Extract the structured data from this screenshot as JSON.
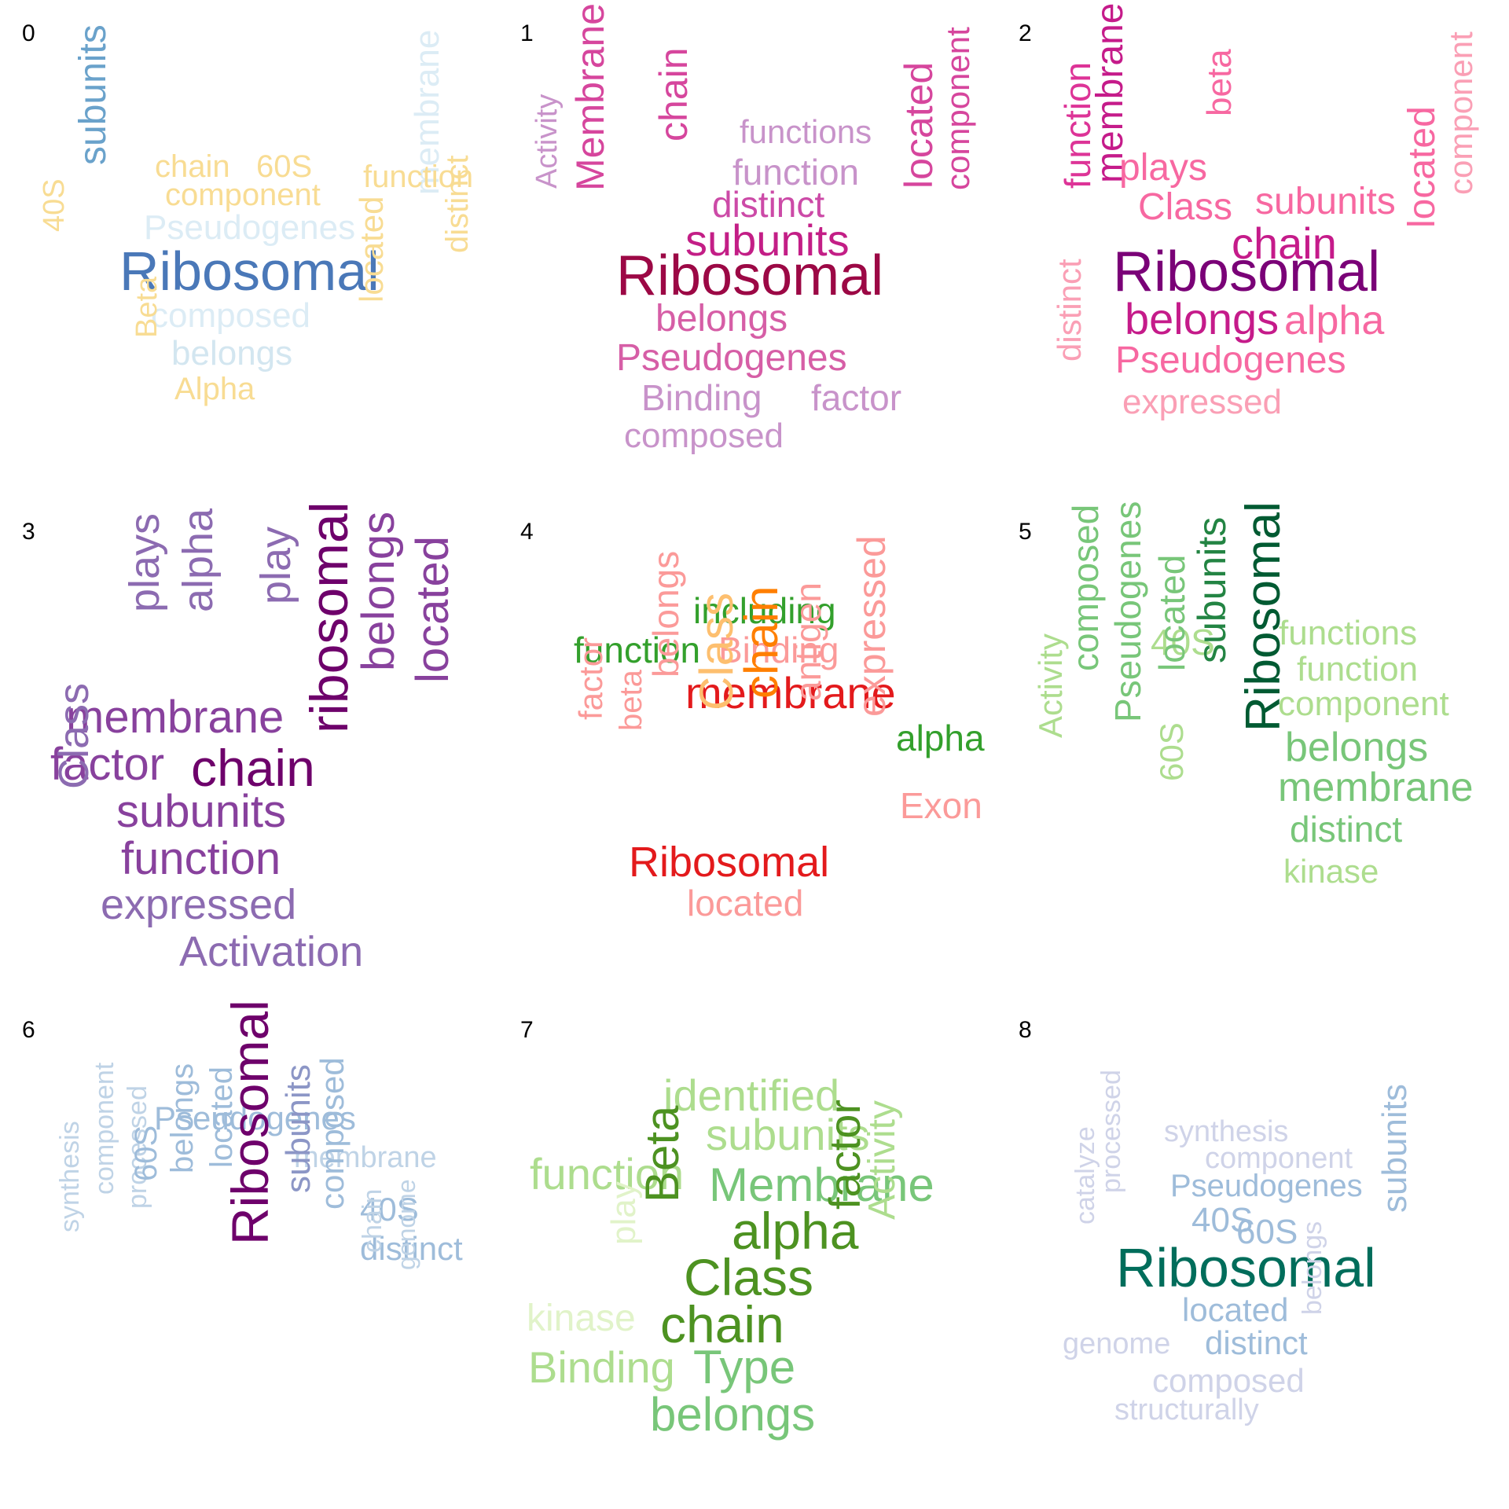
{
  "panels": [
    {
      "label": "0",
      "words": [
        {
          "text": "Ribosomal",
          "color": "#4a78b8",
          "vertical": false
        },
        {
          "text": "subunits",
          "color": "#6aa2cb",
          "vertical": true
        },
        {
          "text": "Pseudogenes",
          "color": "#dcecf5",
          "vertical": false
        },
        {
          "text": "composed",
          "color": "#dcecf5",
          "vertical": false
        },
        {
          "text": "belongs",
          "color": "#d3e6f0",
          "vertical": false
        },
        {
          "text": "membrane",
          "color": "#dcecf5",
          "vertical": true
        },
        {
          "text": "chain",
          "color": "#f8dc93",
          "vertical": false
        },
        {
          "text": "60S",
          "color": "#f8dc93",
          "vertical": false
        },
        {
          "text": "component",
          "color": "#f8dc93",
          "vertical": false
        },
        {
          "text": "function",
          "color": "#f8dc93",
          "vertical": false
        },
        {
          "text": "40S",
          "color": "#f8dc93",
          "vertical": true
        },
        {
          "text": "Beta",
          "color": "#f8dc93",
          "vertical": true
        },
        {
          "text": "Alpha",
          "color": "#f8dc93",
          "vertical": false
        },
        {
          "text": "located",
          "color": "#f8dc93",
          "vertical": true
        },
        {
          "text": "distinct",
          "color": "#f8dc93",
          "vertical": true
        }
      ]
    },
    {
      "label": "1",
      "words": [
        {
          "text": "Ribosomal",
          "color": "#9c0845",
          "vertical": false
        },
        {
          "text": "subunits",
          "color": "#c31e86",
          "vertical": false
        },
        {
          "text": "distinct",
          "color": "#cc4aa7",
          "vertical": false
        },
        {
          "text": "function",
          "color": "#c893ca",
          "vertical": false
        },
        {
          "text": "functions",
          "color": "#c893ca",
          "vertical": false
        },
        {
          "text": "chain",
          "color": "#d6469d",
          "vertical": true
        },
        {
          "text": "Membrane",
          "color": "#d6469d",
          "vertical": true
        },
        {
          "text": "Activity",
          "color": "#c893ca",
          "vertical": true
        },
        {
          "text": "belongs",
          "color": "#d65ea6",
          "vertical": false
        },
        {
          "text": "Pseudogenes",
          "color": "#d65ea6",
          "vertical": false
        },
        {
          "text": "Binding",
          "color": "#c893ca",
          "vertical": false
        },
        {
          "text": "factor",
          "color": "#c893ca",
          "vertical": false
        },
        {
          "text": "composed",
          "color": "#c893ca",
          "vertical": false
        },
        {
          "text": "located",
          "color": "#d6469d",
          "vertical": true
        },
        {
          "text": "component",
          "color": "#d6469d",
          "vertical": true
        }
      ]
    },
    {
      "label": "2",
      "words": [
        {
          "text": "Ribosomal",
          "color": "#7a0177",
          "vertical": false
        },
        {
          "text": "chain",
          "color": "#c51b8a",
          "vertical": false
        },
        {
          "text": "belongs",
          "color": "#c51b8a",
          "vertical": false
        },
        {
          "text": "membrane",
          "color": "#c51b8a",
          "vertical": true
        },
        {
          "text": "function",
          "color": "#dd3497",
          "vertical": true
        },
        {
          "text": "plays",
          "color": "#f768a1",
          "vertical": false
        },
        {
          "text": "beta",
          "color": "#f768a1",
          "vertical": true
        },
        {
          "text": "Class",
          "color": "#f768a1",
          "vertical": false
        },
        {
          "text": "subunits",
          "color": "#f768a1",
          "vertical": false
        },
        {
          "text": "alpha",
          "color": "#f768a1",
          "vertical": false
        },
        {
          "text": "Pseudogenes",
          "color": "#f768a1",
          "vertical": false
        },
        {
          "text": "expressed",
          "color": "#fa9fb5",
          "vertical": false
        },
        {
          "text": "distinct",
          "color": "#fa9fb5",
          "vertical": true
        },
        {
          "text": "located",
          "color": "#f768a1",
          "vertical": true
        },
        {
          "text": "component",
          "color": "#fa9fb5",
          "vertical": true
        }
      ]
    },
    {
      "label": "3",
      "words": [
        {
          "text": "plays",
          "color": "#8c6bb1",
          "vertical": true
        },
        {
          "text": "alpha",
          "color": "#8c6bb1",
          "vertical": true
        },
        {
          "text": "play",
          "color": "#8c6bb1",
          "vertical": true
        },
        {
          "text": "membrane",
          "color": "#88419d",
          "vertical": false
        },
        {
          "text": "factor",
          "color": "#88419d",
          "vertical": false
        },
        {
          "text": "chain",
          "color": "#6e016b",
          "vertical": false
        },
        {
          "text": "subunits",
          "color": "#88419d",
          "vertical": false
        },
        {
          "text": "function",
          "color": "#88419d",
          "vertical": false
        },
        {
          "text": "Class",
          "color": "#8c6bb1",
          "vertical": true
        },
        {
          "text": "expressed",
          "color": "#8c6bb1",
          "vertical": false
        },
        {
          "text": "Activation",
          "color": "#8c6bb1",
          "vertical": false
        },
        {
          "text": "ribosomal",
          "color": "#6e016b",
          "vertical": true
        },
        {
          "text": "belongs",
          "color": "#88419d",
          "vertical": true
        },
        {
          "text": "located",
          "color": "#88419d",
          "vertical": true
        }
      ]
    },
    {
      "label": "4",
      "words": [
        {
          "text": "including",
          "color": "#33a02c",
          "vertical": false
        },
        {
          "text": "function",
          "color": "#33a02c",
          "vertical": false
        },
        {
          "text": "Binding",
          "color": "#fb9a99",
          "vertical": false
        },
        {
          "text": "membrane",
          "color": "#e31a1c",
          "vertical": false
        },
        {
          "text": "alpha",
          "color": "#33a02c",
          "vertical": false
        },
        {
          "text": "Exon",
          "color": "#fb9a99",
          "vertical": false
        },
        {
          "text": "factor",
          "color": "#fb9a99",
          "vertical": true
        },
        {
          "text": "beta",
          "color": "#fb9a99",
          "vertical": true
        },
        {
          "text": "belongs",
          "color": "#fb9a99",
          "vertical": true
        },
        {
          "text": "Class",
          "color": "#fdbf6f",
          "vertical": true
        },
        {
          "text": "chain",
          "color": "#ff7f00",
          "vertical": true
        },
        {
          "text": "antigen",
          "color": "#fb9a99",
          "vertical": true
        },
        {
          "text": "expressed",
          "color": "#fb9a99",
          "vertical": true
        },
        {
          "text": "Ribosomal",
          "color": "#e31a1c",
          "vertical": false
        },
        {
          "text": "located",
          "color": "#fb9a99",
          "vertical": false
        }
      ]
    },
    {
      "label": "5",
      "words": [
        {
          "text": "Activity",
          "color": "#addd8e",
          "vertical": true
        },
        {
          "text": "composed",
          "color": "#78c679",
          "vertical": true
        },
        {
          "text": "Pseudogenes",
          "color": "#78c679",
          "vertical": true
        },
        {
          "text": "40S",
          "color": "#addd8e",
          "vertical": false
        },
        {
          "text": "located",
          "color": "#78c679",
          "vertical": true
        },
        {
          "text": "60S",
          "color": "#addd8e",
          "vertical": true
        },
        {
          "text": "subunits",
          "color": "#238443",
          "vertical": true
        },
        {
          "text": "Ribosomal",
          "color": "#005a32",
          "vertical": true
        },
        {
          "text": "functions",
          "color": "#addd8e",
          "vertical": false
        },
        {
          "text": "function",
          "color": "#addd8e",
          "vertical": false
        },
        {
          "text": "component",
          "color": "#addd8e",
          "vertical": false
        },
        {
          "text": "belongs",
          "color": "#78c679",
          "vertical": false
        },
        {
          "text": "membrane",
          "color": "#78c679",
          "vertical": false
        },
        {
          "text": "distinct",
          "color": "#78c679",
          "vertical": false
        },
        {
          "text": "kinase",
          "color": "#addd8e",
          "vertical": false
        }
      ]
    },
    {
      "label": "6",
      "words": [
        {
          "text": "Pseudogenes",
          "color": "#9ebcda",
          "vertical": false
        },
        {
          "text": "membrane",
          "color": "#bfd3e6",
          "vertical": false
        },
        {
          "text": "40S",
          "color": "#9ebcda",
          "vertical": false
        },
        {
          "text": "distinct",
          "color": "#9ebcda",
          "vertical": false
        },
        {
          "text": "synthesis",
          "color": "#bfd3e6",
          "vertical": true
        },
        {
          "text": "component",
          "color": "#bfd3e6",
          "vertical": true
        },
        {
          "text": "processed",
          "color": "#bfd3e6",
          "vertical": true
        },
        {
          "text": "60S",
          "color": "#9ebcda",
          "vertical": true
        },
        {
          "text": "belongs",
          "color": "#9ebcda",
          "vertical": true
        },
        {
          "text": "located",
          "color": "#9ebcda",
          "vertical": true
        },
        {
          "text": "Ribosomal",
          "color": "#6e016b",
          "vertical": true
        },
        {
          "text": "subunits",
          "color": "#8c96c6",
          "vertical": true
        },
        {
          "text": "composed",
          "color": "#9ebcda",
          "vertical": true
        },
        {
          "text": "chain",
          "color": "#bfd3e6",
          "vertical": true
        },
        {
          "text": "genome",
          "color": "#bfd3e6",
          "vertical": true
        }
      ]
    },
    {
      "label": "7",
      "words": [
        {
          "text": "identified",
          "color": "#addd8e",
          "vertical": false
        },
        {
          "text": "subunits",
          "color": "#addd8e",
          "vertical": false
        },
        {
          "text": "function",
          "color": "#addd8e",
          "vertical": false
        },
        {
          "text": "Membrane",
          "color": "#78c679",
          "vertical": false
        },
        {
          "text": "alpha",
          "color": "#4d9221",
          "vertical": false
        },
        {
          "text": "Class",
          "color": "#4d9221",
          "vertical": false
        },
        {
          "text": "chain",
          "color": "#4d9221",
          "vertical": false
        },
        {
          "text": "Type",
          "color": "#78c679",
          "vertical": false
        },
        {
          "text": "Binding",
          "color": "#addd8e",
          "vertical": false
        },
        {
          "text": "belongs",
          "color": "#78c679",
          "vertical": false
        },
        {
          "text": "kinase",
          "color": "#e1f3c9",
          "vertical": false
        },
        {
          "text": "play",
          "color": "#e1f3c9",
          "vertical": true
        },
        {
          "text": "Beta",
          "color": "#4d9221",
          "vertical": true
        },
        {
          "text": "factor",
          "color": "#4d9221",
          "vertical": true
        },
        {
          "text": "Activity",
          "color": "#addd8e",
          "vertical": true
        }
      ]
    },
    {
      "label": "8",
      "words": [
        {
          "text": "synthesis",
          "color": "#cfd3e8",
          "vertical": false
        },
        {
          "text": "component",
          "color": "#cfd3e8",
          "vertical": false
        },
        {
          "text": "Pseudogenes",
          "color": "#9ebcda",
          "vertical": false
        },
        {
          "text": "40S",
          "color": "#9ebcda",
          "vertical": false
        },
        {
          "text": "60S",
          "color": "#9ebcda",
          "vertical": false
        },
        {
          "text": "Ribosomal",
          "color": "#006d5b",
          "vertical": false
        },
        {
          "text": "located",
          "color": "#9ebcda",
          "vertical": false
        },
        {
          "text": "distinct",
          "color": "#9ebcda",
          "vertical": false
        },
        {
          "text": "genome",
          "color": "#cfd3e8",
          "vertical": false
        },
        {
          "text": "composed",
          "color": "#cfd3e8",
          "vertical": false
        },
        {
          "text": "structurally",
          "color": "#cfd3e8",
          "vertical": false
        },
        {
          "text": "catalyze",
          "color": "#cfd3e8",
          "vertical": true
        },
        {
          "text": "processed",
          "color": "#cfd3e8",
          "vertical": true
        },
        {
          "text": "belongs",
          "color": "#cfd3e8",
          "vertical": true
        },
        {
          "text": "subunits",
          "color": "#9ebcda",
          "vertical": true
        }
      ]
    }
  ]
}
